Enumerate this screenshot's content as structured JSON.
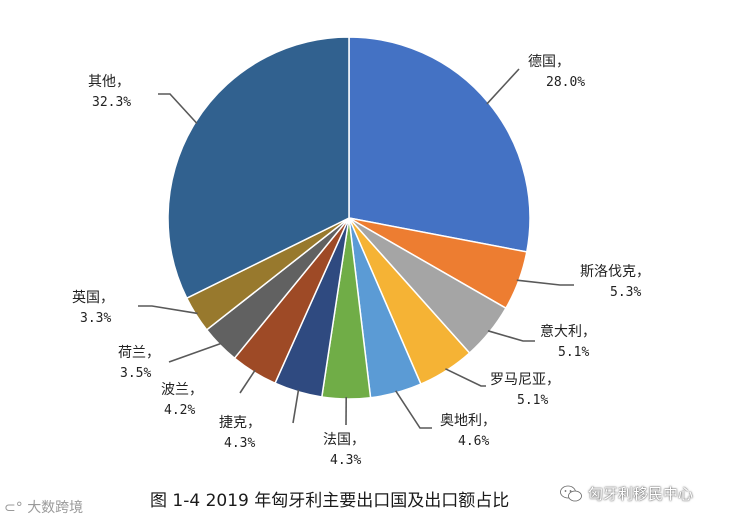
{
  "chart_data": {
    "type": "pie",
    "title": "图 1-4    2019 年匈牙利主要出口国及出口额占比",
    "slices": [
      {
        "label": "德国，",
        "value": 28.0,
        "pct_text": "28.0%",
        "color": "#4472C4"
      },
      {
        "label": "斯洛伐克，",
        "value": 5.3,
        "pct_text": "5.3%",
        "color": "#ED7D31"
      },
      {
        "label": "意大利，",
        "value": 5.1,
        "pct_text": "5.1%",
        "color": "#A5A5A5"
      },
      {
        "label": "罗马尼亚，",
        "value": 5.1,
        "pct_text": "5.1%",
        "color": "#F5B335"
      },
      {
        "label": "奥地利，",
        "value": 4.6,
        "pct_text": "4.6%",
        "color": "#5B9BD5"
      },
      {
        "label": "法国，",
        "value": 4.3,
        "pct_text": "4.3%",
        "color": "#70AD47"
      },
      {
        "label": "捷克，",
        "value": 4.3,
        "pct_text": "4.3%",
        "color": "#2F4A80"
      },
      {
        "label": "波兰，",
        "value": 4.2,
        "pct_text": "4.2%",
        "color": "#9E4A26"
      },
      {
        "label": "荷兰，",
        "value": 3.5,
        "pct_text": "3.5%",
        "color": "#616161"
      },
      {
        "label": "英国，",
        "value": 3.3,
        "pct_text": "3.3%",
        "color": "#98792D"
      },
      {
        "label": "其他，",
        "value": 32.3,
        "pct_text": "32.3%",
        "color": "#31618F"
      }
    ]
  },
  "watermarks": {
    "left": "大数跨境",
    "right": "匈牙利移民中心"
  }
}
